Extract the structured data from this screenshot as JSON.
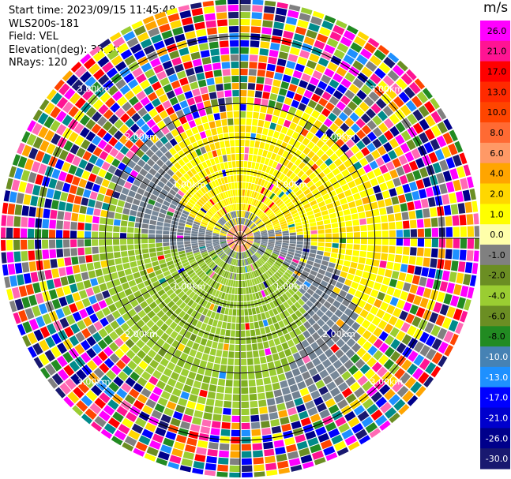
{
  "header": {
    "start_time": "Start time: 2023/09/15 11:45:48",
    "instrument": "WLS200s-181",
    "field": "Field: VEL",
    "elevation": "Elevation(deg): 35.30",
    "nrays": "NRays: 120"
  },
  "chart_data": {
    "type": "heatmap",
    "projection": "polar-ppi",
    "field": "VEL",
    "unit": "m/s",
    "ring_labels": [
      "1.00km",
      "2.00km",
      "3.00km"
    ],
    "range_rings_km": [
      1,
      2,
      3
    ],
    "max_range_km": 3.55,
    "spokes_deg": [
      0,
      30,
      60,
      90,
      120,
      150,
      180,
      210,
      240,
      270,
      300,
      330
    ],
    "colorbar": {
      "ticks": [
        "26.0",
        "21.0",
        "17.0",
        "13.0",
        "10.0",
        "8.0",
        "6.0",
        "4.0",
        "2.0",
        "1.0",
        "0.0",
        "-1.0",
        "-2.0",
        "-4.0",
        "-6.0",
        "-8.0",
        "-10.0",
        "-13.0",
        "-17.0",
        "-21.0",
        "-26.0",
        "-30.0"
      ],
      "colors": [
        "#ff00ff",
        "#ff1493",
        "#ff0000",
        "#ff2a00",
        "#ff4500",
        "#ff6a33",
        "#ff9966",
        "#ffa500",
        "#ffd700",
        "#ffff00",
        "#ffffaa",
        "#808080",
        "#6b8e23",
        "#9acd32",
        "#6b8e23",
        "#228b22",
        "#4682b4",
        "#1e90ff",
        "#0000ff",
        "#0000cd",
        "#00008b",
        "#191970"
      ]
    }
  }
}
